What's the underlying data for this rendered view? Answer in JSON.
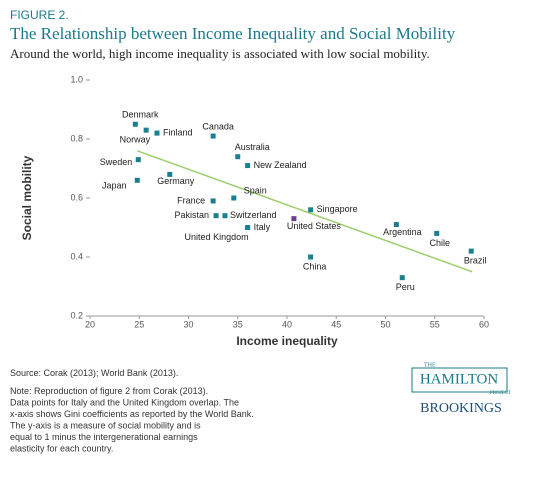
{
  "figure_label": "FIGURE 2.",
  "chart_data": {
    "type": "scatter",
    "title": "The Relationship between Income Inequality and Social Mobility",
    "subtitle": "Around the world, high income inequality is associated with low social mobility.",
    "x_label": "Income inequality",
    "y_label": "Social mobility",
    "labels": [
      "Denmark",
      "Norway",
      "Finland",
      "Canada",
      "Sweden",
      "Australia",
      "New Zealand",
      "Japan",
      "Germany",
      "Spain",
      "France",
      "Pakistan",
      "Switzerland",
      "Italy",
      "United Kingdom",
      "United States",
      "Singapore",
      "China",
      "Argentina",
      "Chile",
      "Brazil",
      "Peru"
    ],
    "x": [
      24.6,
      25.7,
      26.8,
      32.5,
      24.9,
      35.0,
      36.0,
      24.8,
      28.1,
      34.6,
      32.5,
      32.8,
      33.7,
      36.0,
      36.0,
      40.7,
      42.4,
      42.4,
      51.1,
      55.2,
      58.7,
      51.7
    ],
    "y": [
      0.85,
      0.83,
      0.82,
      0.81,
      0.73,
      0.74,
      0.71,
      0.66,
      0.68,
      0.6,
      0.59,
      0.54,
      0.54,
      0.5,
      0.5,
      0.53,
      0.56,
      0.4,
      0.51,
      0.48,
      0.42,
      0.33
    ],
    "colors": [
      "#1a7f8e",
      "#1a7f8e",
      "#1a7f8e",
      "#1a7f8e",
      "#1a7f8e",
      "#1a7f8e",
      "#1a7f8e",
      "#1a7f8e",
      "#1a7f8e",
      "#1a7f8e",
      "#1a7f8e",
      "#1a7f8e",
      "#1a7f8e",
      "#1a7f8e",
      "#1a7f8e",
      "#6b3d8f",
      "#1a7f8e",
      "#1a7f8e",
      "#1a7f8e",
      "#1a7f8e",
      "#1a7f8e",
      "#1a7f8e"
    ],
    "trendline": {
      "x": [
        24.8,
        58.8
      ],
      "y": [
        0.76,
        0.35
      ],
      "color": "#9ccf6e"
    },
    "xlim": [
      20,
      60
    ],
    "xticks": [
      20,
      25,
      30,
      35,
      40,
      45,
      50,
      55,
      60
    ],
    "ylim": [
      0.2,
      1
    ],
    "yticks": [
      0.2,
      0.4,
      0.6,
      0.8,
      {
        "value": 1,
        "label": "1.0"
      }
    ]
  },
  "footer": {
    "source": "Source: Corak (2013); World Bank (2013).",
    "notes": [
      "Note: Reproduction of figure 2 from Corak (2013).",
      "Data points for Italy and the United Kingdom overlap. The",
      "x-axis shows Gini coefficients as reported by the World Bank.",
      "The y-axis is a measure of social mobility and is",
      "equal to 1 minus the intergenerational earnings",
      "elasticity for each country."
    ]
  },
  "logo": {
    "the": "THE",
    "hamilton": "HAMILTON",
    "project": "PROJECT",
    "brookings": "BROOKINGS"
  }
}
